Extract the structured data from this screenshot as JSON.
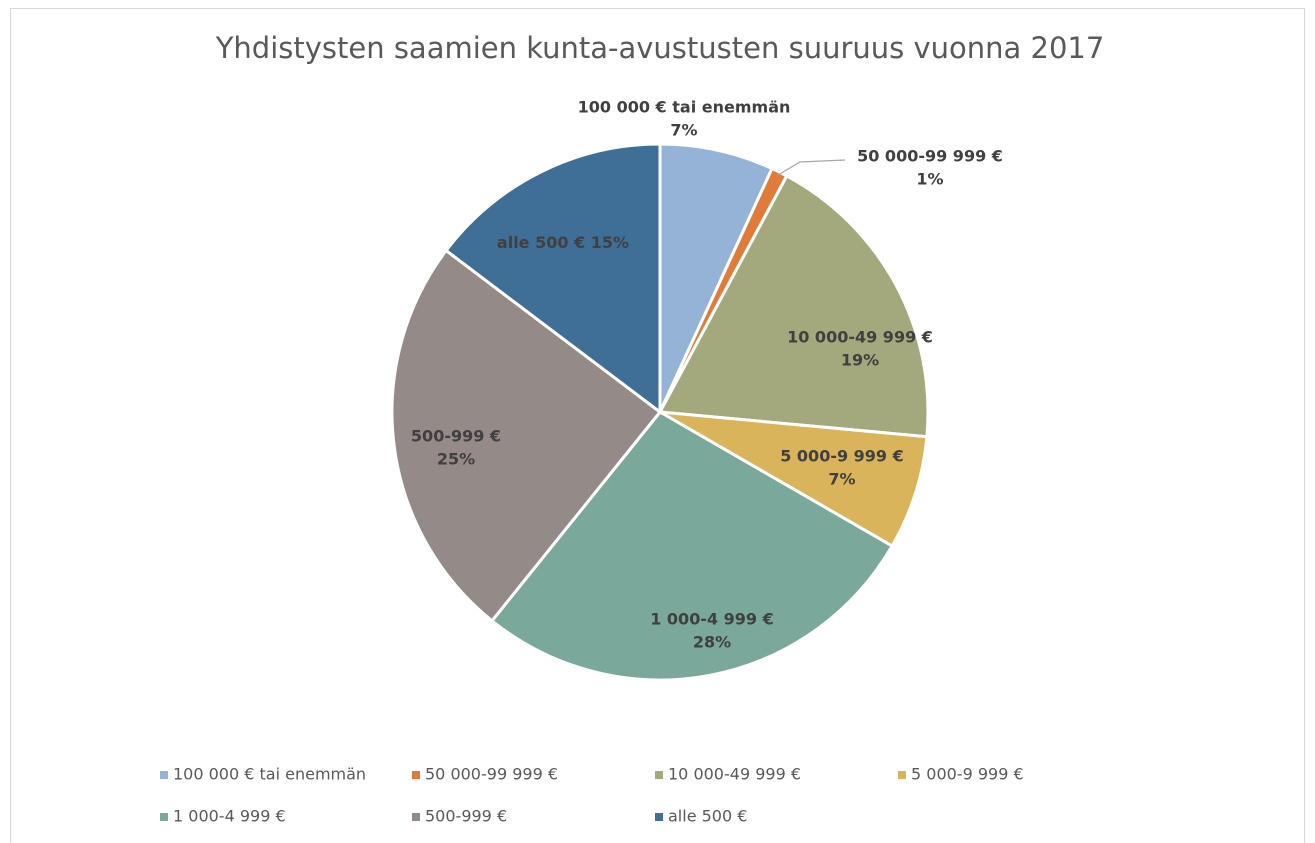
{
  "chart_data": {
    "type": "pie",
    "title": "Yhdistysten saamien kunta-avustusten suuruus vuonna 2017",
    "categories": [
      "100 000 € tai enemmän",
      "50 000-99 999 €",
      "10 000-49 999 €",
      "5 000-9 999 €",
      "1 000-4 999 €",
      "500-999 €",
      "alle 500 €"
    ],
    "values": [
      7,
      1,
      19,
      7,
      28,
      25,
      15
    ],
    "value_labels": [
      "7%",
      "1%",
      "19%",
      "7%",
      "28%",
      "25%",
      "15%"
    ],
    "colors": [
      "#95b3d7",
      "#e07b39",
      "#a4a97d",
      "#d9b45a",
      "#7aa99b",
      "#948a88",
      "#3f6e96"
    ],
    "legend": "bottom"
  }
}
